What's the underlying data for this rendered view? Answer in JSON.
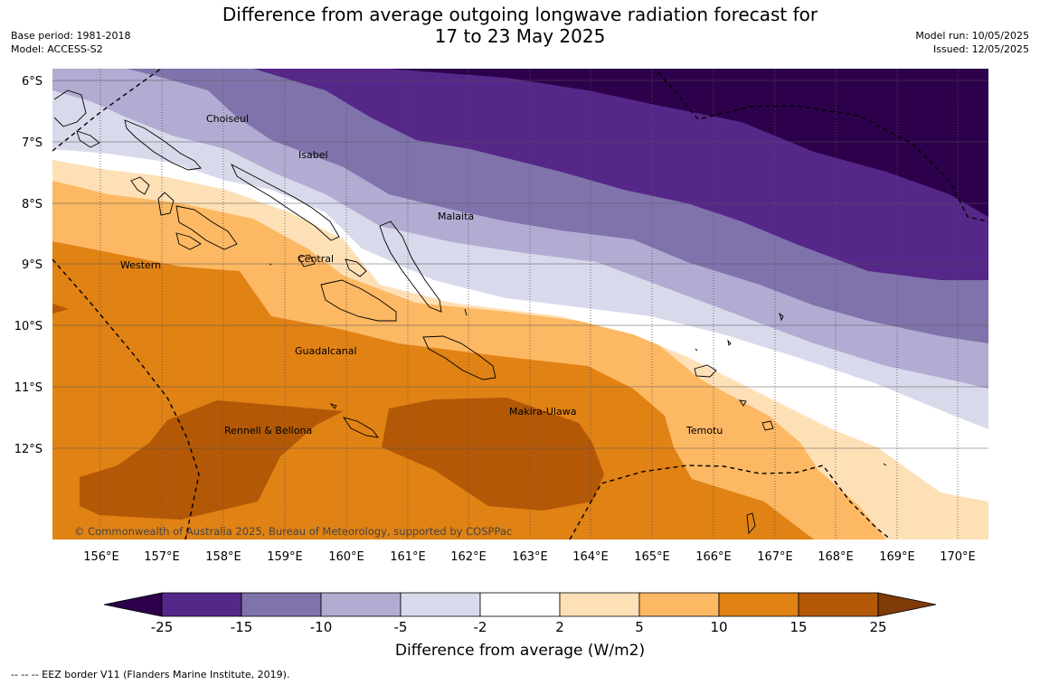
{
  "header": {
    "title_line1": "Difference from average outgoing longwave radiation forecast for",
    "title_line2": "17 to 23 May 2025",
    "base_period": "Base period: 1981-2018",
    "model": "Model: ACCESS-S2",
    "model_run": "Model run: 10/05/2025",
    "issued": "Issued: 12/05/2025"
  },
  "map": {
    "lon_ticks": [
      "156°E",
      "157°E",
      "158°E",
      "159°E",
      "160°E",
      "161°E",
      "162°E",
      "163°E",
      "164°E",
      "165°E",
      "166°E",
      "167°E",
      "168°E",
      "169°E",
      "170°E"
    ],
    "lat_ticks": [
      "6°S",
      "7°S",
      "8°S",
      "9°S",
      "10°S",
      "11°S",
      "12°S"
    ],
    "regions": [
      {
        "name": "Choiseul"
      },
      {
        "name": "Isabel"
      },
      {
        "name": "Malaita"
      },
      {
        "name": "Central"
      },
      {
        "name": "Western"
      },
      {
        "name": "Guadalcanal"
      },
      {
        "name": "Makira-Ulawa"
      },
      {
        "name": "Rennell & Bellona"
      },
      {
        "name": "Temotu"
      }
    ],
    "copyright": "© Commonwealth of Australia 2025, Bureau of Meteorology, supported by COSPPac"
  },
  "colorbar": {
    "ticks": [
      "-25",
      "-15",
      "-10",
      "-5",
      "-2",
      "2",
      "5",
      "10",
      "15",
      "25"
    ],
    "colors": {
      "under": "#2d004b",
      "bins": [
        "#542788",
        "#8073ac",
        "#b2abd2",
        "#d8daeb",
        "#ffffff",
        "#fee0b6",
        "#fdb863",
        "#e08214",
        "#b35806"
      ],
      "over": "#7f3b08"
    },
    "label": "Difference from average (W/m2)"
  },
  "footer": {
    "eez_legend": "--  --  -- EEZ border V11 (Flanders Marine Institute, 2019)."
  }
}
